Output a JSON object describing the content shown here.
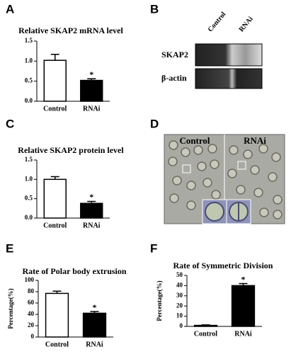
{
  "panel_letters": [
    "A",
    "B",
    "C",
    "D",
    "E",
    "F"
  ],
  "chart_data": [
    {
      "type": "bar",
      "title": "Relative SKAP2 mRNA level",
      "categories": [
        "Control",
        "RNAi"
      ],
      "values": [
        1.02,
        0.52
      ],
      "errors": [
        0.15,
        0.04
      ],
      "colors": [
        "#ffffff",
        "#000000"
      ],
      "annotation": "*",
      "ylim": [
        0,
        1.5
      ],
      "yticks": [
        {
          "value": 0,
          "label": "0.0"
        },
        {
          "value": 0.5,
          "label": "0.5"
        },
        {
          "value": 1,
          "label": "1.0"
        },
        {
          "value": 1.5,
          "label": "1.5"
        }
      ]
    },
    {
      "type": "bar",
      "title": "Relative SKAP2 protein  level",
      "categories": [
        "Control",
        "RNAi"
      ],
      "values": [
        1.0,
        0.38
      ],
      "errors": [
        0.07,
        0.05
      ],
      "colors": [
        "#ffffff",
        "#000000"
      ],
      "annotation": "*",
      "ylim": [
        0,
        1.5
      ],
      "yticks": [
        {
          "value": 0,
          "label": "0.0"
        },
        {
          "value": 0.5,
          "label": "0.5"
        },
        {
          "value": 1,
          "label": "1.0"
        },
        {
          "value": 1.5,
          "label": "1.5"
        }
      ]
    },
    {
      "type": "bar",
      "title": "Rate of Polar body extrusion",
      "ylabel": "Percentage(%)",
      "categories": [
        "Control",
        "RNAi"
      ],
      "values": [
        77,
        42
      ],
      "errors": [
        4,
        3
      ],
      "colors": [
        "#ffffff",
        "#000000"
      ],
      "annotation": "*",
      "ylim": [
        0,
        100
      ],
      "yticks": [
        0,
        20,
        40,
        60,
        80,
        100
      ]
    },
    {
      "type": "bar",
      "title": "Rate of Symmetric Division",
      "ylabel": "Percentage(%)",
      "categories": [
        "Control",
        "RNAi"
      ],
      "values": [
        1,
        40
      ],
      "errors": [
        0.5,
        2
      ],
      "colors": [
        "#ffffff",
        "#000000"
      ],
      "annotation": "*",
      "ylim": [
        0,
        50
      ],
      "yticks": [
        0,
        10,
        20,
        30,
        40,
        50
      ]
    }
  ],
  "blot": {
    "lanes": [
      "Control",
      "RNAi"
    ],
    "bands": [
      "SKAP2",
      "β-actin"
    ]
  },
  "micrograph": {
    "labels": [
      "Control",
      "RNAi"
    ]
  }
}
